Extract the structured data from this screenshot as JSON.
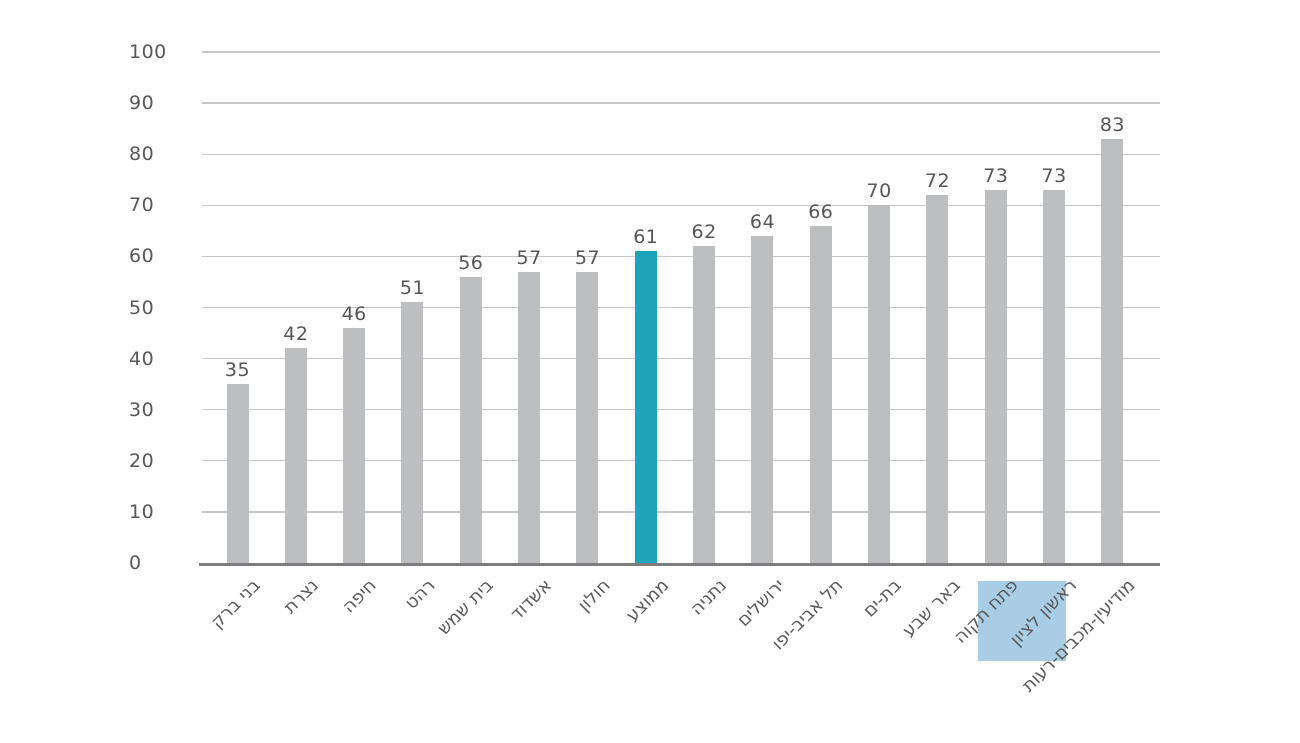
{
  "chart_data": {
    "type": "bar",
    "title": "",
    "xlabel": "",
    "ylabel": "",
    "categories": [
      "בני ברק",
      "נצרת",
      "חיפה",
      "רהט",
      "בית שמש",
      "אשדוד",
      "חולון",
      "ממוצע",
      "נתניה",
      "ירושלים",
      "תל אביב-יפו",
      "בת-ים",
      "באר שבע",
      "פתח תקוה",
      "ראשון לציון",
      "מודיעין-מכבים-רעות"
    ],
    "values": [
      35,
      42,
      46,
      51,
      56,
      57,
      57,
      61,
      62,
      64,
      66,
      70,
      72,
      73,
      73,
      83
    ],
    "ylim": [
      0,
      100
    ],
    "yticks": [
      0,
      10,
      20,
      30,
      40,
      50,
      60,
      70,
      80,
      90,
      100
    ],
    "grid": true,
    "legend": "none",
    "highlighted_bar_category": "ממוצע",
    "highlighted_label_category": "ראשון לציון",
    "colors": {
      "bar": "#bdbec0",
      "highlight_bar": "#1da4ba",
      "label_highlight_bg": "#a9cde4",
      "gridline": "#c6c6c8",
      "axis_line": "#7d7d7f",
      "tick_text": "#57585c",
      "value_text": "#55565a",
      "category_text": "#5a5b5f"
    }
  }
}
